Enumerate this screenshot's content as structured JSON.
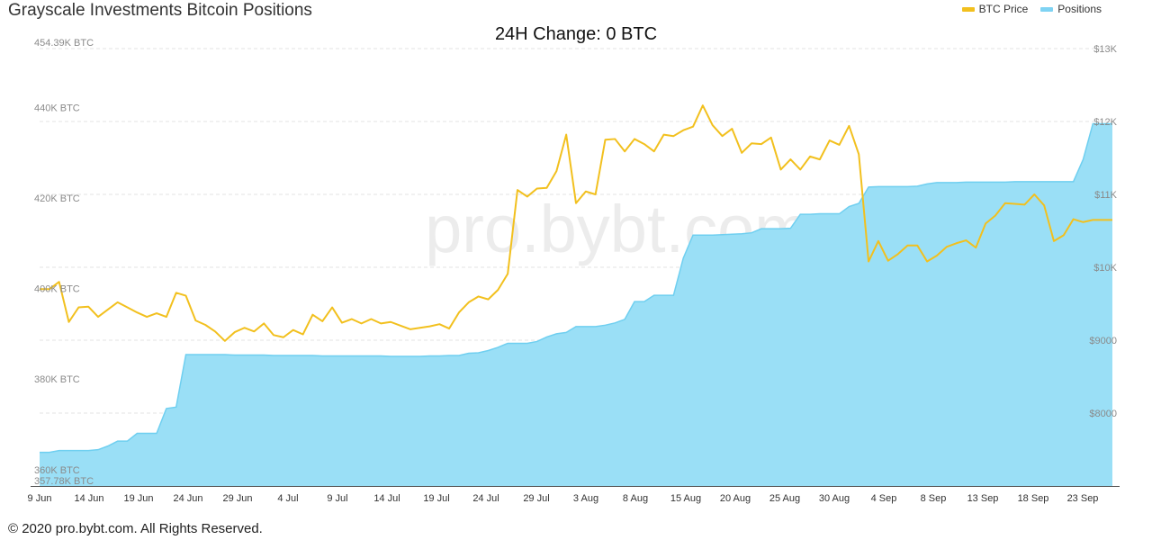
{
  "header": {
    "title": "Grayscale Investments Bitcoin Positions",
    "subtitle": "24H Change: 0 BTC"
  },
  "watermark": "pro.bybt.com",
  "footer": {
    "copyright": "© 2020 pro.bybt.com. All Rights Reserved."
  },
  "colors": {
    "price": "#f2c01e",
    "positions_fill": "#9adff6",
    "positions_line": "#6fcff0"
  },
  "chart_data": {
    "type": "area",
    "legend_position": "top-right",
    "grid": true,
    "legend": [
      {
        "name": "BTC Price",
        "color": "#f2c01e"
      },
      {
        "name": "Positions",
        "color": "#7fd3f3"
      }
    ],
    "x_ticks": [
      "9 Jun",
      "14 Jun",
      "19 Jun",
      "24 Jun",
      "29 Jun",
      "4 Jul",
      "9 Jul",
      "14 Jul",
      "19 Jul",
      "24 Jul",
      "29 Jul",
      "3 Aug",
      "8 Aug",
      "15 Aug",
      "20 Aug",
      "25 Aug",
      "30 Aug",
      "4 Sep",
      "8 Sep",
      "13 Sep",
      "18 Sep",
      "23 Sep"
    ],
    "y_left": {
      "ylim": [
        357780,
        454390
      ],
      "tick_labels": [
        "357.78K BTC",
        "360K BTC",
        "380K BTC",
        "400K BTC",
        "420K BTC",
        "440K BTC",
        "454.39K BTC"
      ],
      "tick_values": [
        357780,
        360000,
        380000,
        400000,
        420000,
        440000,
        454390
      ]
    },
    "y_right": {
      "ylim": [
        7000,
        13000
      ],
      "tick_labels": [
        "$8000",
        "$9000",
        "$10K",
        "$11K",
        "$12K",
        "$13K"
      ],
      "tick_values": [
        8000,
        9000,
        10000,
        11000,
        12000,
        13000
      ]
    },
    "series": [
      {
        "name": "Positions",
        "axis": "left",
        "x": [
          0,
          1,
          2,
          3,
          4,
          5,
          6,
          7,
          8,
          9,
          10,
          11,
          12,
          13,
          14,
          15,
          16,
          17,
          18,
          19,
          20,
          21,
          22,
          23,
          24,
          25,
          26,
          27,
          28,
          29,
          30,
          31,
          32,
          33,
          34,
          35,
          36,
          37,
          38,
          39,
          40,
          41,
          42,
          43,
          44,
          45,
          46,
          47,
          48,
          49,
          50,
          51,
          52,
          53,
          54,
          55,
          56,
          57,
          58,
          59,
          60,
          61,
          62,
          63,
          64,
          65,
          66,
          67,
          68,
          69,
          70,
          71,
          72,
          73,
          74,
          75,
          76,
          77,
          78,
          79,
          80,
          81,
          82,
          83,
          84,
          85,
          86,
          87,
          88,
          89,
          90,
          91,
          92,
          93,
          94,
          95,
          96,
          97,
          98,
          99,
          100,
          101,
          102,
          103,
          104,
          105,
          106,
          107,
          108,
          109,
          110
        ],
        "values": [
          365200,
          365200,
          365600,
          365600,
          365600,
          365600,
          365800,
          366600,
          367700,
          367700,
          369400,
          369400,
          369400,
          374900,
          375200,
          386800,
          386800,
          386800,
          386800,
          386800,
          386700,
          386700,
          386700,
          386700,
          386600,
          386600,
          386600,
          386600,
          386600,
          386500,
          386500,
          386500,
          386500,
          386500,
          386500,
          386500,
          386400,
          386400,
          386400,
          386400,
          386500,
          386500,
          386600,
          386600,
          387100,
          387200,
          387700,
          388400,
          389300,
          389300,
          389300,
          389700,
          390700,
          391400,
          391700,
          393000,
          393000,
          393000,
          393300,
          393800,
          394600,
          398500,
          398500,
          399900,
          399900,
          399900,
          408100,
          413200,
          413200,
          413200,
          413300,
          413400,
          413500,
          413700,
          414600,
          414600,
          414600,
          414700,
          417800,
          417800,
          417900,
          417900,
          417900,
          419500,
          420200,
          423800,
          423900,
          423900,
          423900,
          423900,
          424000,
          424500,
          424800,
          424800,
          424800,
          424900,
          424900,
          424900,
          424900,
          424900,
          425000,
          425000,
          425000,
          425000,
          425000,
          425000,
          425000,
          429900,
          437800,
          437800,
          437800
        ]
      },
      {
        "name": "BTC Price",
        "axis": "right",
        "x": [
          0,
          1,
          2,
          3,
          4,
          5,
          6,
          7,
          8,
          9,
          10,
          11,
          12,
          13,
          14,
          15,
          16,
          17,
          18,
          19,
          20,
          21,
          22,
          23,
          24,
          25,
          26,
          27,
          28,
          29,
          30,
          31,
          32,
          33,
          34,
          35,
          36,
          37,
          38,
          39,
          40,
          41,
          42,
          43,
          44,
          45,
          46,
          47,
          48,
          49,
          50,
          51,
          52,
          53,
          54,
          55,
          56,
          57,
          58,
          59,
          60,
          61,
          62,
          63,
          64,
          65,
          66,
          67,
          68,
          69,
          70,
          71,
          72,
          73,
          74,
          75,
          76,
          77,
          78,
          79,
          80,
          81,
          82,
          83,
          84,
          85,
          86,
          87,
          88,
          89,
          90,
          91,
          92,
          93,
          94,
          95,
          96,
          97,
          98,
          99,
          100,
          101,
          102,
          103,
          104,
          105,
          106,
          107,
          108,
          109,
          110
        ],
        "values": [
          9700,
          9700,
          9800,
          9250,
          9450,
          9460,
          9320,
          9420,
          9520,
          9450,
          9380,
          9320,
          9370,
          9320,
          9650,
          9610,
          9270,
          9210,
          9120,
          8990,
          9110,
          9170,
          9120,
          9230,
          9070,
          9040,
          9140,
          9080,
          9350,
          9260,
          9450,
          9240,
          9290,
          9230,
          9290,
          9230,
          9250,
          9200,
          9150,
          9170,
          9190,
          9220,
          9160,
          9380,
          9520,
          9600,
          9560,
          9690,
          9910,
          11060,
          10970,
          11080,
          11090,
          11320,
          11820,
          10880,
          11040,
          11000,
          11750,
          11760,
          11590,
          11760,
          11690,
          11590,
          11820,
          11800,
          11880,
          11930,
          12220,
          11950,
          11800,
          11900,
          11570,
          11700,
          11690,
          11780,
          11340,
          11480,
          11340,
          11520,
          11480,
          11740,
          11680,
          11940,
          11550,
          10080,
          10360,
          10090,
          10180,
          10300,
          10300,
          10080,
          10160,
          10280,
          10330,
          10370,
          10270,
          10600,
          10710,
          10880,
          10870,
          10860,
          11000,
          10850,
          10360,
          10440,
          10660,
          10620,
          10650,
          10650,
          10650
        ]
      }
    ]
  }
}
